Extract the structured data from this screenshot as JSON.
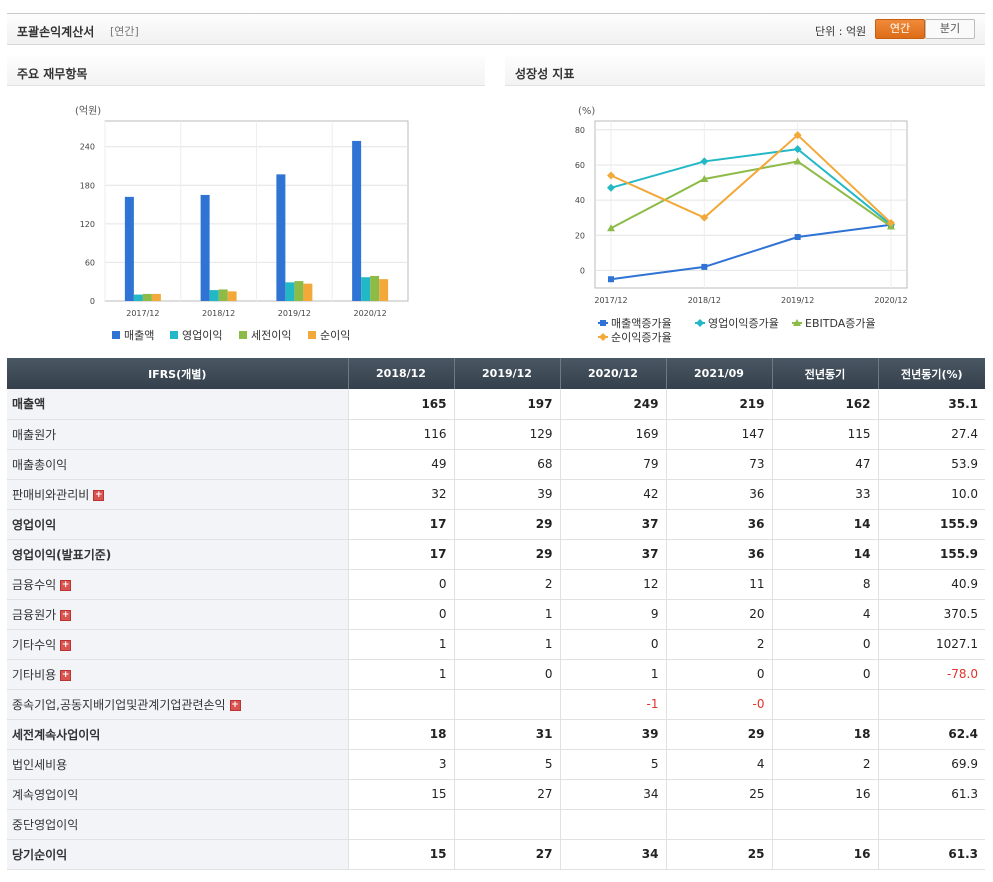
{
  "header": {
    "title": "포괄손익계산서",
    "period_type": "[연간]",
    "unit": "단위 : 억원",
    "toggle_annual": "연간",
    "toggle_quarter": "분기"
  },
  "panels": {
    "left_title": "주요 재무항목",
    "right_title": "성장성 지표"
  },
  "chart_data": [
    {
      "type": "bar",
      "unit_label": "(억원)",
      "categories": [
        "2017/12",
        "2018/12",
        "2019/12",
        "2020/12"
      ],
      "ylim": [
        0,
        280
      ],
      "yticks": [
        0,
        60,
        120,
        180,
        240
      ],
      "grid": true,
      "legend_position": "bottom",
      "series": [
        {
          "name": "매출액",
          "color": "#2f73d4",
          "values": [
            162,
            165,
            197,
            249
          ]
        },
        {
          "name": "영업이익",
          "color": "#22b8c6",
          "values": [
            10,
            17,
            29,
            37
          ]
        },
        {
          "name": "세전이익",
          "color": "#8cbb48",
          "values": [
            11,
            18,
            31,
            39
          ]
        },
        {
          "name": "순이익",
          "color": "#f3a93a",
          "values": [
            11,
            15,
            27,
            34
          ]
        }
      ]
    },
    {
      "type": "line",
      "unit_label": "(%)",
      "categories": [
        "2017/12",
        "2018/12",
        "2019/12",
        "2020/12"
      ],
      "ylim": [
        -10,
        85
      ],
      "yticks": [
        0,
        20,
        40,
        60,
        80
      ],
      "grid": true,
      "legend_position": "bottom",
      "series": [
        {
          "name": "매출액증가율",
          "color": "#2f73d4",
          "marker": "square",
          "values": [
            -5,
            2,
            19,
            26
          ]
        },
        {
          "name": "영업이익증가율",
          "color": "#22b8c6",
          "marker": "diamond",
          "values": [
            47,
            62,
            69,
            26
          ]
        },
        {
          "name": "EBITDA증가율",
          "color": "#8cbb48",
          "marker": "triangle",
          "values": [
            24,
            52,
            62,
            25
          ]
        },
        {
          "name": "순이익증가율",
          "color": "#f3a93a",
          "marker": "diamond",
          "values": [
            54,
            30,
            77,
            27
          ]
        }
      ]
    }
  ],
  "table": {
    "columns": [
      "IFRS(개별)",
      "2018/12",
      "2019/12",
      "2020/12",
      "2021/09",
      "전년동기",
      "전년동기(%)"
    ],
    "rows": [
      {
        "label": "매출액",
        "bold": true,
        "expand": false,
        "values": [
          "165",
          "197",
          "249",
          "219",
          "162",
          "35.1"
        ]
      },
      {
        "label": "매출원가",
        "bold": false,
        "expand": false,
        "values": [
          "116",
          "129",
          "169",
          "147",
          "115",
          "27.4"
        ]
      },
      {
        "label": "매출총이익",
        "bold": false,
        "expand": false,
        "values": [
          "49",
          "68",
          "79",
          "73",
          "47",
          "53.9"
        ]
      },
      {
        "label": "판매비와관리비",
        "bold": false,
        "expand": true,
        "values": [
          "32",
          "39",
          "42",
          "36",
          "33",
          "10.0"
        ]
      },
      {
        "label": "영업이익",
        "bold": true,
        "expand": false,
        "values": [
          "17",
          "29",
          "37",
          "36",
          "14",
          "155.9"
        ]
      },
      {
        "label": "영업이익(발표기준)",
        "bold": true,
        "expand": false,
        "values": [
          "17",
          "29",
          "37",
          "36",
          "14",
          "155.9"
        ]
      },
      {
        "label": "금융수익",
        "bold": false,
        "expand": true,
        "values": [
          "0",
          "2",
          "12",
          "11",
          "8",
          "40.9"
        ]
      },
      {
        "label": "금융원가",
        "bold": false,
        "expand": true,
        "values": [
          "0",
          "1",
          "9",
          "20",
          "4",
          "370.5"
        ]
      },
      {
        "label": "기타수익",
        "bold": false,
        "expand": true,
        "values": [
          "1",
          "1",
          "0",
          "2",
          "0",
          "1027.1"
        ]
      },
      {
        "label": "기타비용",
        "bold": false,
        "expand": true,
        "values": [
          "1",
          "0",
          "1",
          "0",
          "0",
          "-78.0"
        ]
      },
      {
        "label": "종속기업,공동지배기업및관계기업관련손익",
        "bold": false,
        "expand": true,
        "values": [
          "",
          "",
          "-1",
          "-0",
          "",
          ""
        ]
      },
      {
        "label": "세전계속사업이익",
        "bold": true,
        "expand": false,
        "values": [
          "18",
          "31",
          "39",
          "29",
          "18",
          "62.4"
        ]
      },
      {
        "label": "법인세비용",
        "bold": false,
        "expand": false,
        "values": [
          "3",
          "5",
          "5",
          "4",
          "2",
          "69.9"
        ]
      },
      {
        "label": "계속영업이익",
        "bold": false,
        "expand": false,
        "values": [
          "15",
          "27",
          "34",
          "25",
          "16",
          "61.3"
        ]
      },
      {
        "label": "중단영업이익",
        "bold": false,
        "expand": false,
        "values": [
          "",
          "",
          "",
          "",
          "",
          ""
        ]
      },
      {
        "label": "당기순이익",
        "bold": true,
        "expand": false,
        "values": [
          "15",
          "27",
          "34",
          "25",
          "16",
          "61.3"
        ]
      }
    ]
  }
}
